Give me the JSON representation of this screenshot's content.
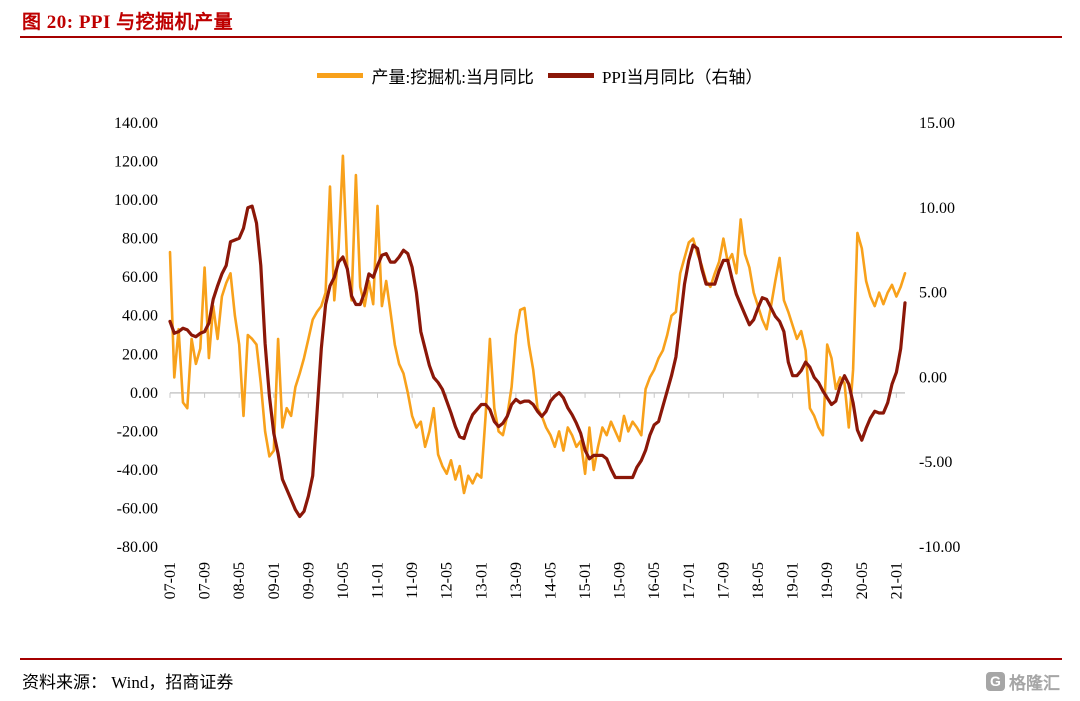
{
  "title": "图 20:  PPI 与挖掘机产量",
  "source": "资料来源： Wind，招商证券",
  "logo": {
    "icon_letter": "G",
    "text": "格隆汇"
  },
  "colors": {
    "title_red": "#be0000",
    "rule_red": "#a50000",
    "excavator_orange": "#f8a11b",
    "ppi_dark_red": "#8b1708",
    "axis_gray": "#c8c8c8",
    "logo_gray": "#a6a6a6"
  },
  "legend": [
    {
      "label": "产量:挖掘机:当月同比",
      "color": "#f8a11b"
    },
    {
      "label": "PPI当月同比（右轴）",
      "color": "#8b1708"
    }
  ],
  "chart_data": {
    "type": "line",
    "title": "PPI 与挖掘机产量",
    "x_start": "2007-01",
    "x_step_months": 1,
    "x_tick_every": 8,
    "x_tick_labels": [
      "07-01",
      "07-09",
      "08-05",
      "09-01",
      "09-09",
      "10-05",
      "11-01",
      "11-09",
      "12-05",
      "13-01",
      "13-09",
      "14-05",
      "15-01",
      "15-09",
      "16-05",
      "17-01",
      "17-09",
      "18-05",
      "19-01",
      "19-09",
      "20-05",
      "21-01"
    ],
    "left_axis": {
      "max": 140,
      "min": -80,
      "step": 20,
      "tick_labels": [
        "140.00",
        "120.00",
        "100.00",
        "80.00",
        "60.00",
        "40.00",
        "20.00",
        "0.00",
        "-20.00",
        "-40.00",
        "-60.00",
        "-80.00"
      ]
    },
    "right_axis": {
      "max": 15,
      "min": -10,
      "step": 5,
      "tick_labels": [
        "15.00",
        "10.00",
        "5.00",
        "0.00",
        "-5.00",
        "-10.00"
      ]
    },
    "grid": "zero-line-only",
    "legend_position": "top-center",
    "series": [
      {
        "name": "产量:挖掘机:当月同比",
        "axis": "left",
        "color": "#f8a11b",
        "values": [
          73,
          8,
          33,
          -5,
          -8,
          28,
          15,
          23,
          65,
          18,
          45,
          28,
          50,
          57,
          62,
          40,
          25,
          -12,
          30,
          28,
          25,
          5,
          -20,
          -33,
          -30,
          28,
          -18,
          -8,
          -12,
          3,
          10,
          18,
          28,
          38,
          42,
          45,
          52,
          107,
          48,
          75,
          123,
          65,
          48,
          113,
          55,
          45,
          58,
          46,
          97,
          45,
          58,
          42,
          25,
          15,
          10,
          0,
          -12,
          -18,
          -15,
          -28,
          -20,
          -8,
          -32,
          -38,
          -42,
          -35,
          -45,
          -38,
          -52,
          -43,
          -47,
          -42,
          -44,
          -12,
          28,
          -8,
          -20,
          -22,
          -12,
          3,
          30,
          43,
          44,
          25,
          12,
          -8,
          -12,
          -18,
          -22,
          -28,
          -20,
          -30,
          -18,
          -22,
          -28,
          -25,
          -42,
          -18,
          -40,
          -28,
          -18,
          -22,
          -15,
          -20,
          -25,
          -12,
          -20,
          -15,
          -18,
          -22,
          2,
          8,
          12,
          18,
          22,
          30,
          40,
          42,
          62,
          70,
          78,
          80,
          72,
          66,
          58,
          55,
          62,
          68,
          80,
          68,
          72,
          62,
          90,
          72,
          65,
          52,
          45,
          38,
          33,
          45,
          58,
          70,
          48,
          42,
          35,
          28,
          32,
          22,
          -8,
          -12,
          -18,
          -22,
          25,
          18,
          2,
          8,
          5,
          -18,
          12,
          83,
          75,
          58,
          50,
          45,
          52,
          46,
          52,
          56,
          50,
          55,
          62
        ]
      },
      {
        "name": "PPI当月同比（右轴）",
        "axis": "right",
        "color": "#8b1708",
        "values": [
          3.3,
          2.6,
          2.7,
          2.9,
          2.8,
          2.5,
          2.4,
          2.6,
          2.7,
          3.2,
          4.6,
          5.4,
          6.1,
          6.6,
          8.0,
          8.1,
          8.2,
          8.8,
          10.0,
          10.1,
          9.1,
          6.6,
          2.0,
          -1.1,
          -3.3,
          -4.5,
          -6.0,
          -6.6,
          -7.2,
          -7.8,
          -8.2,
          -7.9,
          -7.0,
          -5.8,
          -2.1,
          1.7,
          4.3,
          5.4,
          5.9,
          6.8,
          7.1,
          6.4,
          4.8,
          4.3,
          4.3,
          5.0,
          6.1,
          5.9,
          6.6,
          7.2,
          7.3,
          6.8,
          6.8,
          7.1,
          7.5,
          7.3,
          6.5,
          5.0,
          2.7,
          1.7,
          0.7,
          0.0,
          -0.3,
          -0.7,
          -1.4,
          -2.1,
          -2.9,
          -3.5,
          -3.6,
          -2.8,
          -2.2,
          -1.9,
          -1.6,
          -1.6,
          -1.9,
          -2.6,
          -2.9,
          -2.7,
          -2.3,
          -1.6,
          -1.3,
          -1.5,
          -1.4,
          -1.4,
          -1.6,
          -2.0,
          -2.3,
          -2.0,
          -1.4,
          -1.1,
          -0.9,
          -1.2,
          -1.8,
          -2.2,
          -2.7,
          -3.3,
          -4.3,
          -4.8,
          -4.6,
          -4.6,
          -4.6,
          -4.8,
          -5.4,
          -5.9,
          -5.9,
          -5.9,
          -5.9,
          -5.9,
          -5.3,
          -4.9,
          -4.3,
          -3.4,
          -2.8,
          -2.6,
          -1.7,
          -0.8,
          0.1,
          1.2,
          3.3,
          5.5,
          6.9,
          7.8,
          7.6,
          6.4,
          5.5,
          5.5,
          5.5,
          6.3,
          6.9,
          6.9,
          5.8,
          4.9,
          4.3,
          3.7,
          3.1,
          3.4,
          4.1,
          4.7,
          4.6,
          4.1,
          3.6,
          3.3,
          2.7,
          0.9,
          0.1,
          0.1,
          0.4,
          0.9,
          0.6,
          0.0,
          -0.3,
          -0.8,
          -1.2,
          -1.6,
          -1.4,
          -0.5,
          0.1,
          -0.4,
          -1.5,
          -3.1,
          -3.7,
          -3.0,
          -2.4,
          -2.0,
          -2.1,
          -2.1,
          -1.5,
          -0.4,
          0.3,
          1.7,
          4.4
        ]
      }
    ]
  }
}
